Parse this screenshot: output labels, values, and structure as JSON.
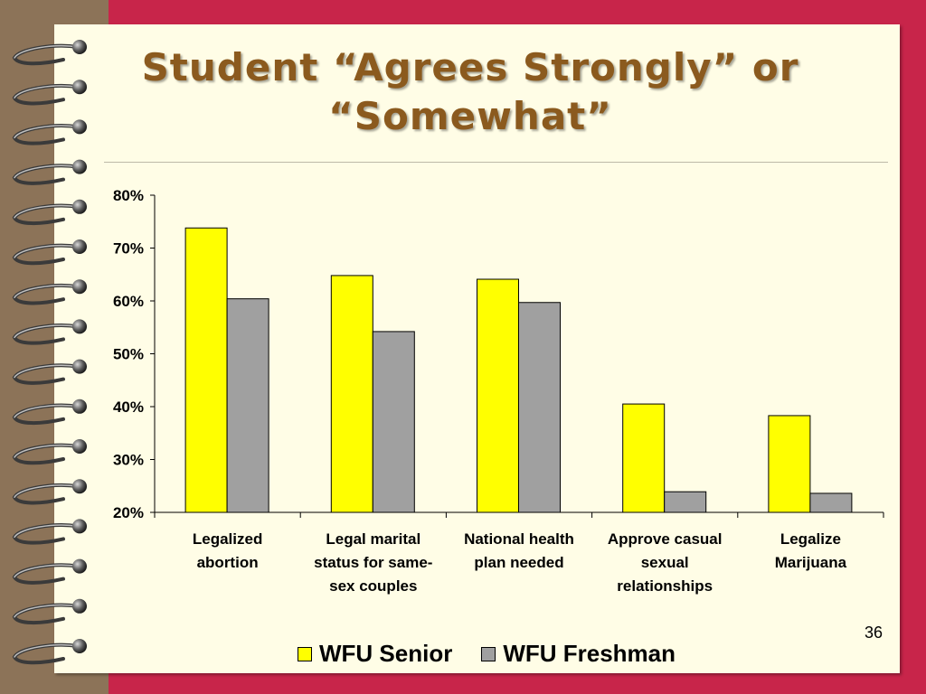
{
  "slide": {
    "title": "Student “Agrees Strongly” or “Somewhat”",
    "number": "36"
  },
  "colors": {
    "background": "#C8254A",
    "page": "#FFFDE6",
    "spine": "#8C7358",
    "title": "#8B5A1E",
    "senior": "#FFFF00",
    "freshman": "#A0A0A0"
  },
  "chart_data": {
    "type": "bar",
    "categories": [
      "Legalized abortion",
      "Legal marital status for same-sex couples",
      "National health plan needed",
      "Approve casual sexual relationships",
      "Legalize Marijuana"
    ],
    "category_lines": [
      [
        "Legalized",
        "abortion"
      ],
      [
        "Legal marital",
        "status for same-",
        "sex couples"
      ],
      [
        "National health",
        "plan needed"
      ],
      [
        "Approve casual",
        "sexual",
        "relationships"
      ],
      [
        "Legalize",
        "Marijuana"
      ]
    ],
    "series": [
      {
        "name": "WFU Senior",
        "color": "#FFFF00",
        "values": [
          73.8,
          64.8,
          64.1,
          40.5,
          38.3
        ]
      },
      {
        "name": "WFU Freshman",
        "color": "#A0A0A0",
        "values": [
          60.4,
          54.2,
          59.7,
          23.9,
          23.6
        ]
      }
    ],
    "ylim": [
      20,
      80
    ],
    "yticks": [
      "20%",
      "30%",
      "40%",
      "50%",
      "60%",
      "70%",
      "80%"
    ],
    "ytick_values": [
      20,
      30,
      40,
      50,
      60,
      70,
      80
    ],
    "grid": false,
    "legend_position": "bottom"
  }
}
